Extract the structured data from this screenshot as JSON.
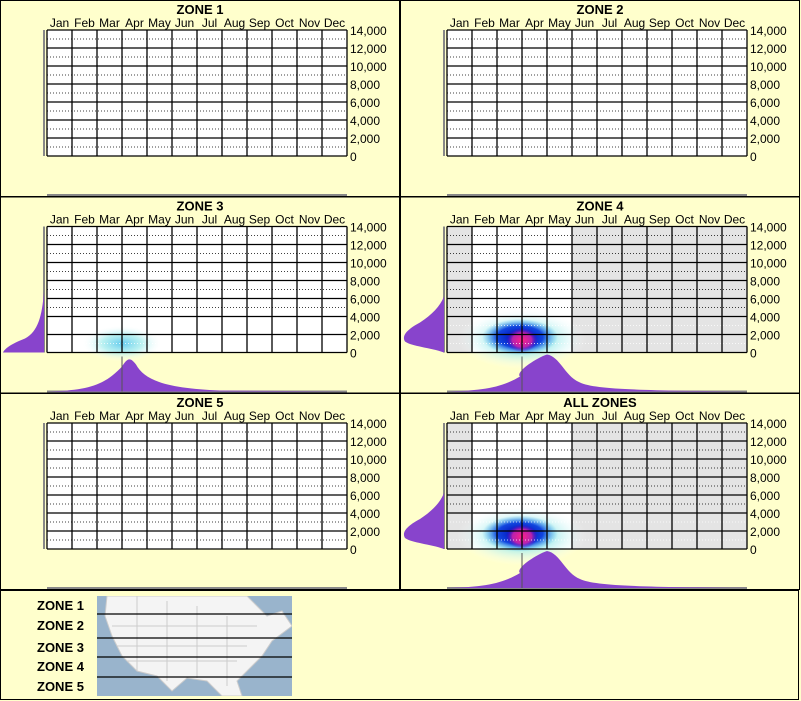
{
  "chart_data": {
    "type": "heatmap",
    "months": [
      "Jan",
      "Feb",
      "Mar",
      "Apr",
      "May",
      "Jun",
      "Jul",
      "Aug",
      "Sep",
      "Oct",
      "Nov",
      "Dec"
    ],
    "y_ticks": [
      "14,000",
      "12,000",
      "10,000",
      "8,000",
      "6,000",
      "4,000",
      "2,000",
      "0"
    ],
    "ylim": [
      0,
      14000
    ],
    "colors": {
      "density": "#8844cc",
      "low": "#aaeeee",
      "mid": "#0000cc",
      "high": "#ff2288",
      "shaded": "#e4e4e4"
    },
    "panels": [
      {
        "title": "ZONE 1",
        "has_data": false
      },
      {
        "title": "ZONE 2",
        "has_data": false
      },
      {
        "title": "ZONE 3",
        "has_data": true,
        "intensity": "low",
        "peak_month": "Apr",
        "peak_elevation": 1000
      },
      {
        "title": "ZONE 4",
        "has_data": true,
        "intensity": "high",
        "peak_month": "Apr",
        "peak_elevation": 1500,
        "observed_months": [
          "Feb",
          "Mar",
          "Apr",
          "May"
        ]
      },
      {
        "title": "ZONE 5",
        "has_data": false
      },
      {
        "title": "ALL ZONES",
        "has_data": true,
        "intensity": "high",
        "peak_month": "Apr",
        "peak_elevation": 1500,
        "observed_months": [
          "Feb",
          "Mar",
          "Apr",
          "May"
        ]
      }
    ]
  },
  "legend": {
    "zones": [
      "ZONE 1",
      "ZONE 2",
      "ZONE 3",
      "ZONE 4",
      "ZONE 5"
    ]
  }
}
